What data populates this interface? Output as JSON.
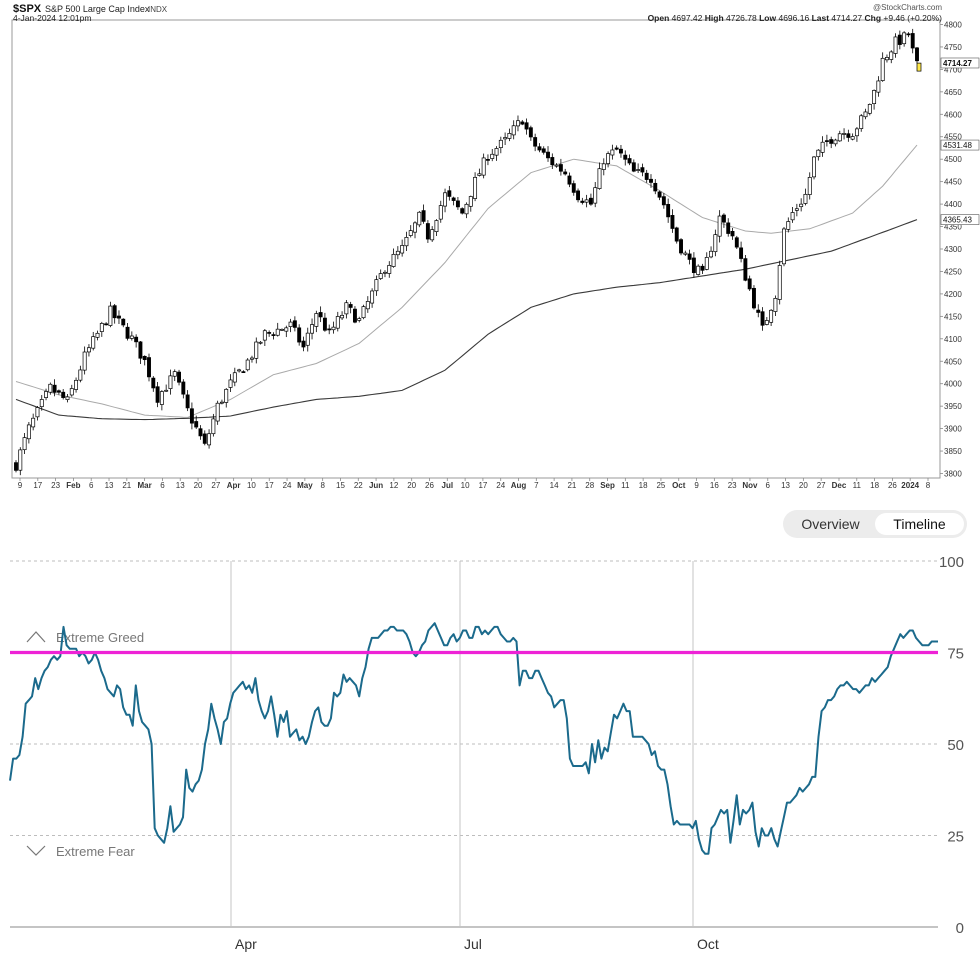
{
  "spx": {
    "symbol": "$SPX",
    "name": "S&P 500 Large Cap Index",
    "exchange": "INDX",
    "date": "4-Jan-2024 12:01pm",
    "watermark": "@StockCharts.com",
    "open_label": "Open",
    "open": "4697.42",
    "high_label": "High",
    "high": "4726.78",
    "low_label": "Low",
    "low": "4696.16",
    "last_label": "Last",
    "last": "4714.27",
    "chg_label": "Chg",
    "chg": "+9.46 (+0.20%)",
    "ma50_tag": "4531.48",
    "ma200_tag": "4365.43"
  },
  "controls": {
    "overview": "Overview",
    "timeline": "Timeline"
  },
  "chart_data": [
    {
      "type": "candlestick",
      "y_ticks": [
        3800,
        3850,
        3900,
        3950,
        4000,
        4050,
        4100,
        4150,
        4200,
        4250,
        4300,
        4350,
        4400,
        4450,
        4500,
        4550,
        4600,
        4650,
        4700,
        4750,
        4800
      ],
      "ylim": [
        3790,
        4810
      ],
      "x_ticks": [
        "9",
        "17",
        "23",
        "Feb",
        "6",
        "13",
        "21",
        "Mar",
        "6",
        "13",
        "20",
        "27",
        "Apr",
        "10",
        "17",
        "24",
        "May",
        "8",
        "15",
        "22",
        "Jun",
        "12",
        "20",
        "26",
        "Jul",
        "10",
        "17",
        "24",
        "Aug",
        "7",
        "14",
        "21",
        "28",
        "Sep",
        "11",
        "18",
        "25",
        "Oct",
        "9",
        "16",
        "23",
        "Nov",
        "6",
        "13",
        "20",
        "27",
        "Dec",
        "11",
        "18",
        "26",
        "2024",
        "8"
      ],
      "price_keypoints": [
        [
          0,
          3820
        ],
        [
          3,
          3900
        ],
        [
          8,
          3990
        ],
        [
          12,
          3960
        ],
        [
          16,
          4060
        ],
        [
          22,
          4160
        ],
        [
          27,
          4100
        ],
        [
          30,
          4050
        ],
        [
          33,
          3970
        ],
        [
          37,
          4020
        ],
        [
          40,
          3940
        ],
        [
          42,
          3900
        ],
        [
          44,
          3860
        ],
        [
          47,
          3950
        ],
        [
          50,
          4000
        ],
        [
          54,
          4050
        ],
        [
          58,
          4110
        ],
        [
          64,
          4130
        ],
        [
          67,
          4080
        ],
        [
          70,
          4160
        ],
        [
          73,
          4110
        ],
        [
          77,
          4170
        ],
        [
          80,
          4140
        ],
        [
          86,
          4260
        ],
        [
          90,
          4300
        ],
        [
          94,
          4370
        ],
        [
          96,
          4330
        ],
        [
          100,
          4420
        ],
        [
          104,
          4380
        ],
        [
          107,
          4450
        ],
        [
          110,
          4510
        ],
        [
          114,
          4540
        ],
        [
          118,
          4590
        ],
        [
          120,
          4540
        ],
        [
          124,
          4500
        ],
        [
          128,
          4470
        ],
        [
          131,
          4420
        ],
        [
          134,
          4400
        ],
        [
          137,
          4500
        ],
        [
          140,
          4520
        ],
        [
          144,
          4470
        ],
        [
          148,
          4460
        ],
        [
          151,
          4400
        ],
        [
          154,
          4320
        ],
        [
          157,
          4270
        ],
        [
          160,
          4240
        ],
        [
          164,
          4370
        ],
        [
          167,
          4330
        ],
        [
          170,
          4240
        ],
        [
          172,
          4180
        ],
        [
          174,
          4120
        ],
        [
          177,
          4200
        ],
        [
          179,
          4340
        ],
        [
          181,
          4380
        ],
        [
          184,
          4420
        ],
        [
          186,
          4500
        ],
        [
          189,
          4540
        ],
        [
          192,
          4560
        ],
        [
          195,
          4560
        ],
        [
          198,
          4600
        ],
        [
          200,
          4650
        ],
        [
          202,
          4720
        ],
        [
          205,
          4760
        ],
        [
          207,
          4770
        ],
        [
          208,
          4780
        ],
        [
          209,
          4740
        ],
        [
          210,
          4710
        ]
      ],
      "ma50_keypoints": [
        [
          0,
          4005
        ],
        [
          10,
          3975
        ],
        [
          20,
          3955
        ],
        [
          30,
          3930
        ],
        [
          40,
          3925
        ],
        [
          50,
          3965
        ],
        [
          60,
          4020
        ],
        [
          70,
          4045
        ],
        [
          80,
          4090
        ],
        [
          90,
          4170
        ],
        [
          100,
          4270
        ],
        [
          110,
          4390
        ],
        [
          120,
          4470
        ],
        [
          130,
          4500
        ],
        [
          140,
          4485
        ],
        [
          150,
          4430
        ],
        [
          160,
          4370
        ],
        [
          170,
          4340
        ],
        [
          176,
          4335
        ],
        [
          185,
          4345
        ],
        [
          195,
          4380
        ],
        [
          202,
          4440
        ],
        [
          210,
          4531.48
        ]
      ],
      "ma200_keypoints": [
        [
          0,
          3965
        ],
        [
          10,
          3930
        ],
        [
          20,
          3922
        ],
        [
          30,
          3920
        ],
        [
          40,
          3923
        ],
        [
          50,
          3928
        ],
        [
          60,
          3948
        ],
        [
          70,
          3965
        ],
        [
          80,
          3972
        ],
        [
          90,
          3985
        ],
        [
          100,
          4030
        ],
        [
          110,
          4110
        ],
        [
          120,
          4170
        ],
        [
          130,
          4200
        ],
        [
          140,
          4215
        ],
        [
          150,
          4225
        ],
        [
          160,
          4240
        ],
        [
          170,
          4255
        ],
        [
          180,
          4275
        ],
        [
          190,
          4295
        ],
        [
          200,
          4330
        ],
        [
          210,
          4365.43
        ]
      ]
    },
    {
      "type": "line",
      "title": "",
      "y_ticks": [
        0,
        25,
        50,
        75,
        100
      ],
      "ylim": [
        0,
        100
      ],
      "x_tick_labels": [
        "Apr",
        "Jul",
        "Oct"
      ],
      "zones": {
        "greed": "Extreme Greed",
        "fear": "Extreme Fear"
      },
      "reference_line": 75,
      "color": "#1b6a8c",
      "threshold_color": "#ee22d6",
      "values": [
        40,
        46,
        46,
        47,
        52,
        61,
        62,
        63,
        68,
        65,
        68,
        70,
        71,
        73,
        74,
        73,
        74,
        82,
        77,
        76,
        76,
        76,
        74,
        75,
        74,
        72,
        73,
        75,
        73,
        70,
        68,
        65,
        64,
        63,
        66,
        65,
        60,
        58,
        58,
        55,
        66,
        59,
        56,
        55,
        54,
        50,
        27,
        25,
        24,
        23,
        27,
        33,
        26,
        27,
        28,
        30,
        43,
        38,
        37,
        39,
        40,
        43,
        50,
        54,
        61,
        57,
        54,
        50,
        56,
        57,
        61,
        64,
        65,
        66,
        67,
        65,
        66,
        64,
        68,
        62,
        59,
        57,
        59,
        63,
        58,
        52,
        58,
        56,
        59,
        52,
        53,
        54,
        51,
        52,
        50,
        52,
        56,
        59,
        60,
        56,
        55,
        55,
        57,
        64,
        63,
        64,
        69,
        67,
        68,
        67,
        66,
        63,
        68,
        71,
        76,
        79,
        79,
        79,
        80,
        81,
        81,
        82,
        82,
        81,
        81,
        81,
        80,
        78,
        75,
        74,
        75,
        77,
        78,
        81,
        82,
        83,
        81,
        79,
        77,
        77,
        79,
        80,
        78,
        79,
        81,
        81,
        79,
        79,
        82,
        82,
        80,
        81,
        80,
        81,
        82,
        82,
        80,
        79,
        78,
        78,
        79,
        78,
        66,
        70,
        70,
        68,
        68,
        70,
        70,
        68,
        66,
        64,
        63,
        60,
        61,
        62,
        62,
        57,
        46,
        44,
        44,
        44,
        44,
        45,
        42,
        50,
        45,
        51,
        46,
        49,
        48,
        53,
        58,
        57,
        59,
        61,
        59,
        59,
        52,
        52,
        52,
        52,
        51,
        50,
        47,
        48,
        44,
        43,
        43,
        39,
        33,
        28,
        29,
        28,
        28,
        28,
        28,
        27,
        29,
        24,
        21,
        20,
        20,
        27,
        28,
        30,
        32,
        31,
        32,
        23,
        29,
        36,
        28,
        32,
        31,
        32,
        34,
        26,
        22,
        27,
        25,
        25,
        27,
        24,
        22,
        26,
        30,
        34,
        34,
        35,
        36,
        38,
        37,
        38,
        39,
        41,
        41,
        52,
        59,
        60,
        62,
        62,
        63,
        65,
        66,
        66,
        67,
        66,
        65,
        65,
        64,
        65,
        66,
        66,
        68,
        67,
        68,
        69,
        70,
        71,
        74,
        76,
        78,
        80,
        79,
        80,
        81,
        81,
        79,
        78,
        77,
        77,
        77,
        78,
        78,
        78
      ]
    }
  ]
}
